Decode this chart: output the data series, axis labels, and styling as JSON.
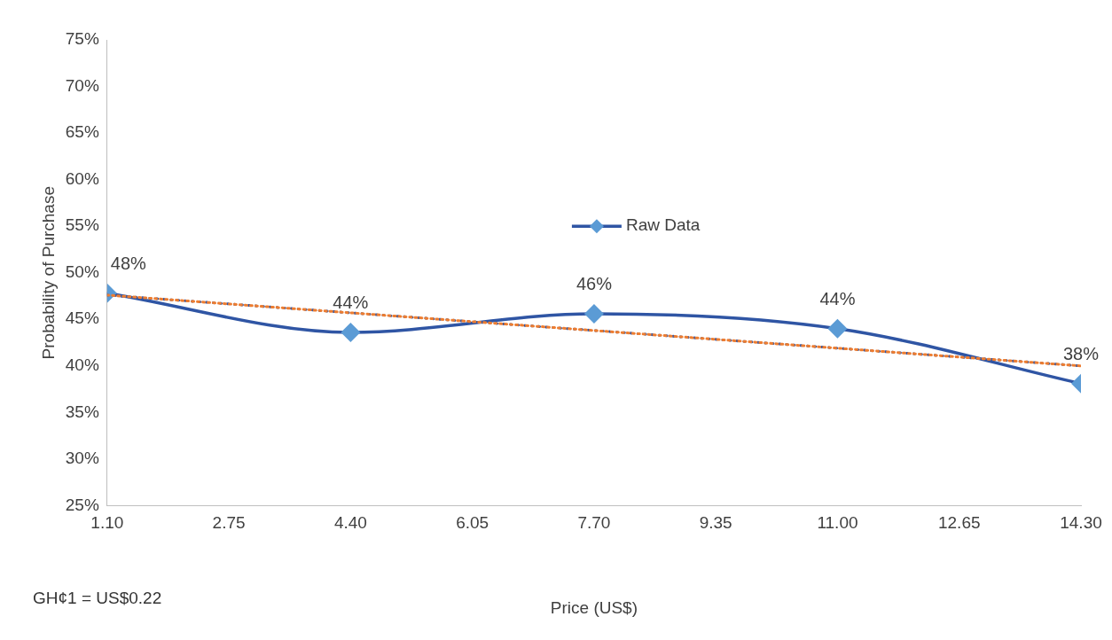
{
  "chart_data": {
    "type": "line",
    "xlabel": "Price (US$)",
    "ylabel": "Probability of Purchase",
    "annotations": [
      "GH¢1 = US$0.22"
    ],
    "legend": "center",
    "xlim": [
      1.1,
      14.3
    ],
    "xticks": [
      {
        "value": 1.1,
        "label": "1.10"
      },
      {
        "value": 2.75,
        "label": "2.75"
      },
      {
        "value": 4.4,
        "label": "4.40"
      },
      {
        "value": 6.05,
        "label": "6.05"
      },
      {
        "value": 7.7,
        "label": "7.70"
      },
      {
        "value": 9.35,
        "label": "9.35"
      },
      {
        "value": 11,
        "label": "11.00"
      },
      {
        "value": 12.65,
        "label": "12.65"
      },
      {
        "value": 14.3,
        "label": "14.30"
      }
    ],
    "ylim": [
      25,
      75
    ],
    "yticks": [
      {
        "value": 25,
        "label": "25%"
      },
      {
        "value": 30,
        "label": "30%"
      },
      {
        "value": 35,
        "label": "35%"
      },
      {
        "value": 40,
        "label": "40%"
      },
      {
        "value": 45,
        "label": "45%"
      },
      {
        "value": 50,
        "label": "50%"
      },
      {
        "value": 55,
        "label": "55%"
      },
      {
        "value": 60,
        "label": "60%"
      },
      {
        "value": 65,
        "label": "65%"
      },
      {
        "value": 70,
        "label": "70%"
      },
      {
        "value": 75,
        "label": "75%"
      }
    ],
    "series": [
      {
        "type": "line",
        "x": [
          1.1,
          14.3
        ],
        "values": [
          47.6,
          40.0
        ],
        "color": "#ed7d31",
        "line_style": "dashed",
        "marker": "none"
      },
      {
        "type": "line",
        "x": [
          1.1,
          14.3
        ],
        "values": [
          47.6,
          40.0
        ],
        "color": "#2f55a4",
        "line_style": "dotted",
        "marker": "none"
      },
      {
        "type": "line",
        "name": "Raw Data",
        "x": [
          1.1,
          4.4,
          7.7,
          11,
          14.3
        ],
        "values": [
          47.8,
          43.6,
          45.6,
          44.0,
          38.1
        ],
        "color": "#2f55a4",
        "marker": "diamond",
        "line_style": "solid",
        "value_labels": [
          "48%",
          "44%",
          "46%",
          "44%",
          "38%"
        ]
      }
    ]
  }
}
